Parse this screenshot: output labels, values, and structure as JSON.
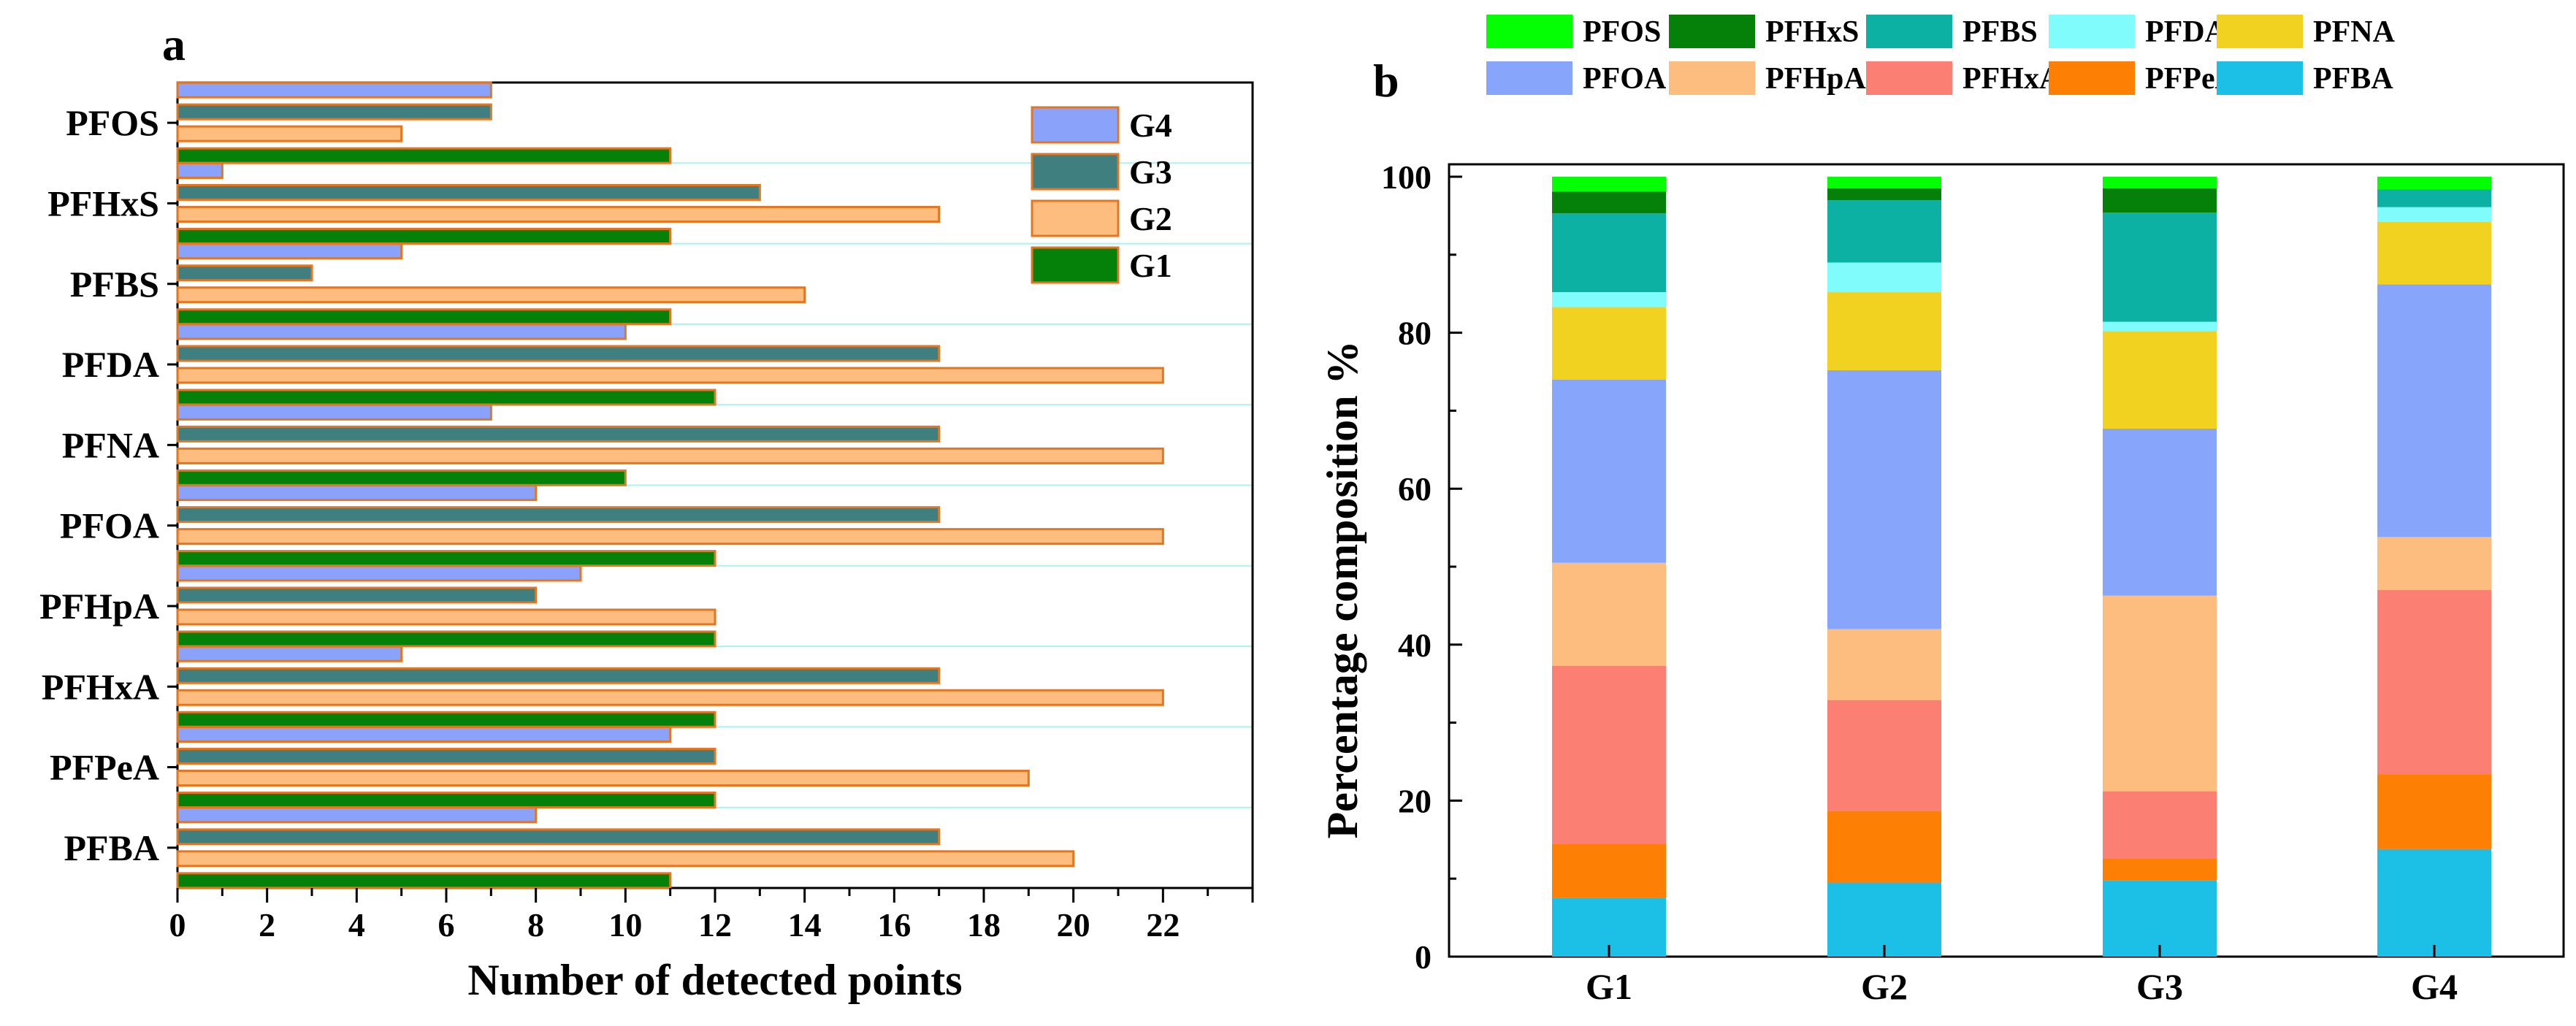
{
  "chart_data": [
    {
      "panel": "a",
      "type": "bar",
      "orientation": "horizontal",
      "categories": [
        "PFOS",
        "PFHxS",
        "PFBS",
        "PFDA",
        "PFNA",
        "PFOA",
        "PFHpA",
        "PFHxA",
        "PFPeA",
        "PFBA"
      ],
      "series": [
        {
          "name": "G4",
          "color": "#8ba2fb",
          "values": [
            7,
            1,
            5,
            10,
            7,
            8,
            9,
            5,
            11,
            8
          ]
        },
        {
          "name": "G3",
          "color": "#3f7f80",
          "values": [
            7,
            13,
            3,
            17,
            17,
            17,
            8,
            17,
            12,
            17
          ]
        },
        {
          "name": "G2",
          "color": "#fdbd7e",
          "values": [
            5,
            17,
            14,
            22,
            22,
            22,
            12,
            22,
            19,
            20
          ]
        },
        {
          "name": "G1",
          "color": "#05810a",
          "values": [
            11,
            11,
            11,
            12,
            10,
            12,
            12,
            12,
            12,
            11
          ]
        }
      ],
      "xlabel": "Number of detected points",
      "xlim": [
        0,
        24
      ],
      "xticks": [
        "0",
        "2",
        "4",
        "6",
        "8",
        "10",
        "12",
        "14",
        "16",
        "18",
        "20",
        "22"
      ],
      "bar_edge_color": "#e37620",
      "grid_color": "#a9f2ef",
      "legend": [
        "G4",
        "G3",
        "G2",
        "G1"
      ],
      "legend_position": "top-right"
    },
    {
      "panel": "b",
      "type": "bar",
      "stacked": true,
      "categories": [
        "G1",
        "G2",
        "G3",
        "G4"
      ],
      "series": [
        {
          "name": "PFBA",
          "color": "#1cc0e6",
          "values": [
            7.5,
            9.5,
            9.8,
            13.8
          ]
        },
        {
          "name": "PFPeA",
          "color": "#fd7f03",
          "values": [
            7.0,
            9.2,
            2.8,
            9.6
          ]
        },
        {
          "name": "PFHxA",
          "color": "#fb7f72",
          "values": [
            22.8,
            14.2,
            8.6,
            23.6
          ]
        },
        {
          "name": "PFHpA",
          "color": "#fdbd7e",
          "values": [
            13.2,
            9.1,
            25.1,
            6.8
          ]
        },
        {
          "name": "PFOA",
          "color": "#86a5fb",
          "values": [
            23.5,
            33.2,
            21.4,
            32.4
          ]
        },
        {
          "name": "PFNA",
          "color": "#f2d221",
          "values": [
            9.3,
            10.0,
            12.5,
            8.0
          ]
        },
        {
          "name": "PFDA",
          "color": "#81fcfd",
          "values": [
            1.9,
            3.8,
            1.2,
            1.9
          ]
        },
        {
          "name": "PFBS",
          "color": "#0db1a4",
          "values": [
            10.1,
            8.0,
            14.0,
            2.3
          ]
        },
        {
          "name": "PFHxS",
          "color": "#05810a",
          "values": [
            2.8,
            1.5,
            3.1,
            0.0
          ]
        },
        {
          "name": "PFOS",
          "color": "#04ff04",
          "values": [
            1.9,
            1.5,
            1.5,
            1.6
          ]
        }
      ],
      "ylabel": "Percentage composition %",
      "ylim": [
        0,
        100
      ],
      "yticks": [
        "0",
        "20",
        "40",
        "60",
        "80",
        "100"
      ],
      "legend_rows": [
        [
          "PFOS",
          "PFHxS",
          "PFBS",
          "PFDA",
          "PFNA"
        ],
        [
          "PFOA",
          "PFHpA",
          "PFHxA",
          "PFPeA",
          "PFBA"
        ]
      ],
      "legend_position": "top"
    }
  ]
}
